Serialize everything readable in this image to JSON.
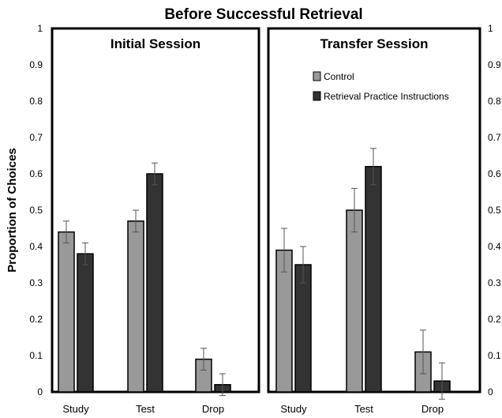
{
  "chart_data": {
    "type": "bar",
    "title": "Before Successful Retrieval",
    "ylabel": "Proportion of Choices",
    "ylim": [
      0,
      1
    ],
    "yticks": [
      "0",
      "0.1",
      "0.2",
      "0.3",
      "0.4",
      "0.5",
      "0.6",
      "0.7",
      "0.8",
      "0.9",
      "1"
    ],
    "categories": [
      "Study",
      "Test",
      "Drop"
    ],
    "legend": {
      "placement": "top-right of second panel"
    },
    "colors": {
      "Control": "#999999",
      "Retrieval Practice Instructions": "#333333"
    },
    "panels": [
      {
        "title": "Initial Session",
        "series": [
          {
            "name": "Control",
            "values": [
              0.44,
              0.47,
              0.09
            ],
            "errors": [
              0.03,
              0.03,
              0.03
            ]
          },
          {
            "name": "Retrieval Practice Instructions",
            "values": [
              0.38,
              0.6,
              0.02
            ],
            "errors": [
              0.03,
              0.03,
              0.03
            ]
          }
        ]
      },
      {
        "title": "Transfer Session",
        "series": [
          {
            "name": "Control",
            "values": [
              0.39,
              0.5,
              0.11
            ],
            "errors": [
              0.06,
              0.06,
              0.06
            ]
          },
          {
            "name": "Retrieval Practice Instructions",
            "values": [
              0.35,
              0.62,
              0.03
            ],
            "errors": [
              0.05,
              0.05,
              0.05
            ]
          }
        ]
      }
    ]
  }
}
